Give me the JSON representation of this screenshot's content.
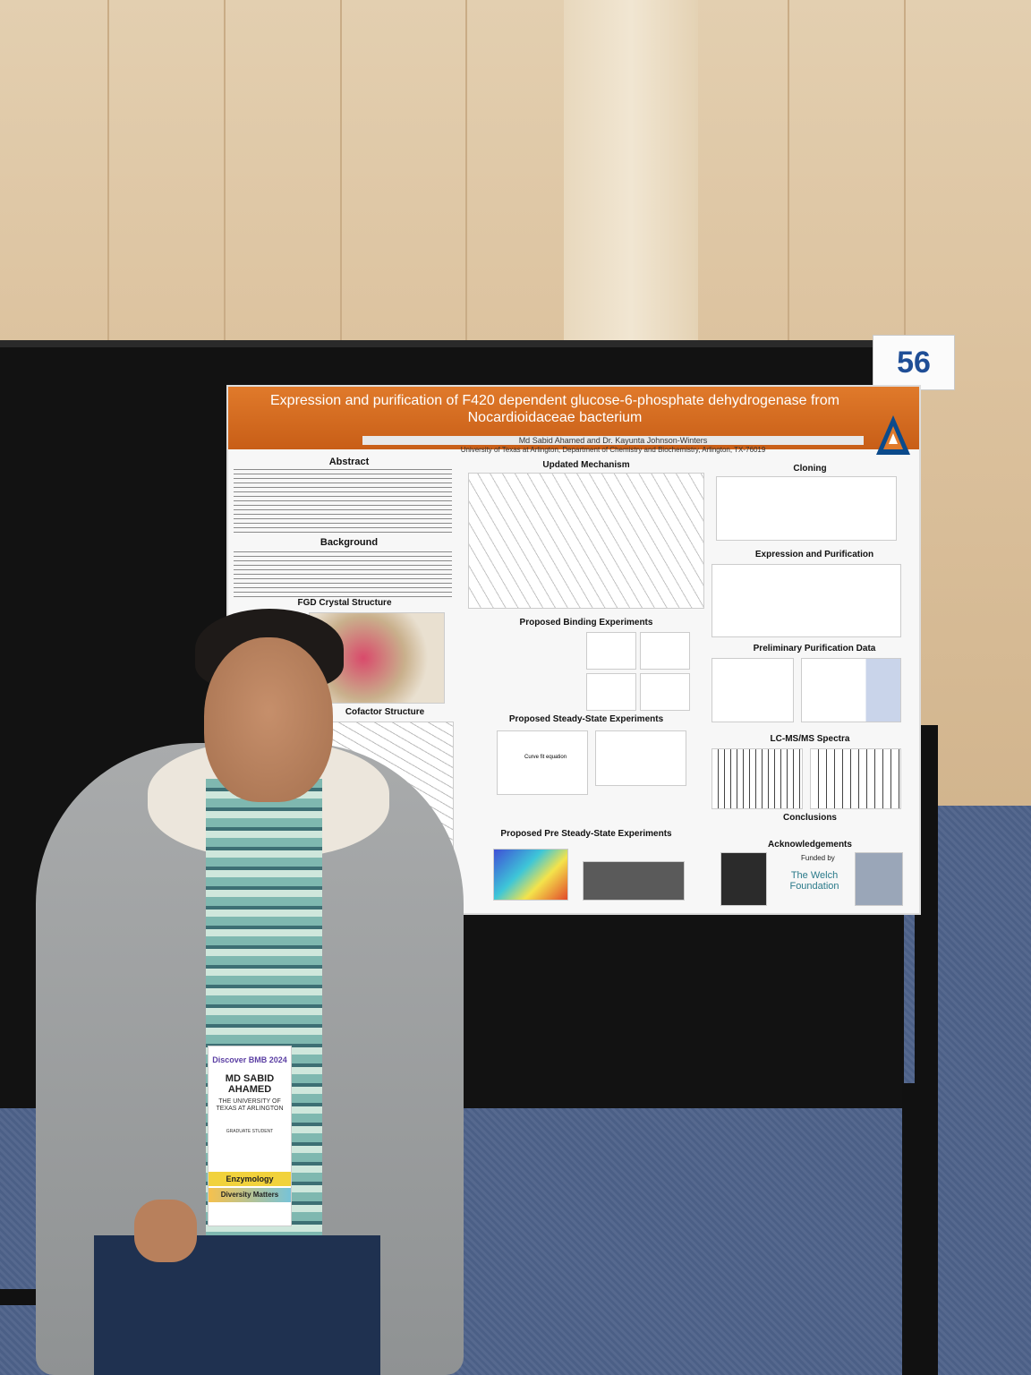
{
  "booth": {
    "number": "56"
  },
  "poster": {
    "title": "Expression and purification of F420 dependent glucose-6-phosphate dehydrogenase from Nocardioidaceae bacterium",
    "authors": "Md Sabid Ahamed and Dr. Kayunta Johnson-Winters",
    "affiliation": "University of Texas at Arlington, Department of Chemistry and Biochemistry, Arlington, TX-76019",
    "sections": {
      "abstract": "Abstract",
      "background": "Background",
      "fgd_crystal": "FGD Crystal Structure",
      "cofactor": "Cofactor Structure",
      "mechanism": "Updated Mechanism",
      "binding": "Proposed Binding Experiments",
      "steady_state": "Proposed Steady-State Experiments",
      "pre_steady": "Proposed Pre Steady-State Experiments",
      "cloning": "Cloning",
      "expression": "Expression and Purification",
      "purification_data": "Preliminary Purification Data",
      "lcms": "LC-MS/MS Spectra",
      "conclusions": "Conclusions",
      "acknowledgements": "Acknowledgements"
    },
    "funded_by": "Funded by",
    "welch": "The Welch Foundation",
    "curve_fit": "Curve fit equation"
  },
  "badge": {
    "event": "Discover BMB 2024",
    "name": "MD SABID AHAMED",
    "organization": "THE UNIVERSITY OF TEXAS AT ARLINGTON",
    "role": "GRADUATE STUDENT",
    "ribbon1": "Enzymology",
    "ribbon2": "Diversity Matters"
  }
}
